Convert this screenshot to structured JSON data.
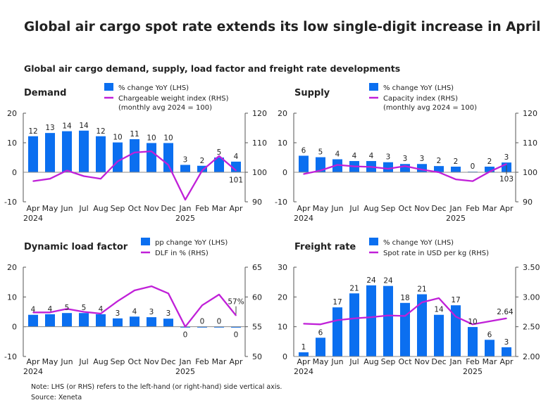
{
  "title": "Global air cargo spot rate extends its low single-digit increase in April",
  "subtitle": "Global air cargo demand, supply, load factor and freight rate developments",
  "note": "Note: LHS (or RHS) refers to the left-hand (or right-hand) side vertical axis.",
  "source": "Source: Xeneta",
  "colors": {
    "bar": "#0b6ff0",
    "line": "#c020d8",
    "axis": "#555555"
  },
  "chart_data": [
    {
      "type": "bar+line",
      "title": "Demand",
      "categories": [
        "Apr",
        "May",
        "Jun",
        "Jul",
        "Aug",
        "Sep",
        "Oct",
        "Nov",
        "Dec",
        "Jan",
        "Feb",
        "Mar",
        "Apr"
      ],
      "year_labels": [
        {
          "index": 0,
          "label": "2024"
        },
        {
          "index": 9,
          "label": "2025"
        }
      ],
      "ylim_left": [
        -10,
        20
      ],
      "yticks_left": [
        "20",
        "10",
        "0",
        "-10"
      ],
      "ylim_right": [
        90,
        120
      ],
      "yticks_right": [
        "120",
        "110",
        "100",
        "90"
      ],
      "bar_series": {
        "name": "% change YoY (LHS)",
        "values": [
          12.2,
          13.3,
          13.9,
          14.1,
          12.2,
          10.1,
          11.2,
          9.9,
          9.9,
          2.5,
          2.2,
          5.0,
          3.6
        ],
        "labels": [
          "12",
          "13",
          "14",
          "14",
          "12",
          "10",
          "11",
          "10",
          "10",
          "3",
          "2",
          "5",
          "4"
        ]
      },
      "line_series": {
        "name": "Chargeable weight index (RHS)",
        "name2": "(monthly avg 2024 = 100)",
        "values": [
          97.0,
          97.8,
          100.6,
          98.7,
          97.8,
          103.7,
          106.7,
          107.1,
          102.5,
          90.7,
          100.6,
          105.5,
          100.6
        ],
        "end_label": "101"
      }
    },
    {
      "type": "bar+line",
      "title": "Supply",
      "categories": [
        "Apr",
        "May",
        "Jun",
        "Jul",
        "Aug",
        "Sep",
        "Oct",
        "Nov",
        "Dec",
        "Jan",
        "Feb",
        "Mar",
        "Apr"
      ],
      "year_labels": [
        {
          "index": 0,
          "label": "2024"
        },
        {
          "index": 9,
          "label": "2025"
        }
      ],
      "ylim_left": [
        -10,
        20
      ],
      "yticks_left": [
        "20",
        "10",
        "0",
        "-10"
      ],
      "ylim_right": [
        90,
        120
      ],
      "yticks_right": [
        "120",
        "110",
        "100",
        "90"
      ],
      "bar_series": {
        "name": "% change YoY (LHS)",
        "values": [
          5.6,
          5.1,
          4.4,
          3.8,
          3.8,
          3.4,
          2.8,
          2.8,
          2.1,
          1.9,
          0.2,
          1.9,
          3.3
        ],
        "labels": [
          "6",
          "5",
          "4",
          "4",
          "4",
          "3",
          "3",
          "3",
          "2",
          "2",
          "0",
          "2",
          "3"
        ]
      },
      "line_series": {
        "name": "Capacity index (RHS)",
        "name2": "(monthly avg 2024 = 100)",
        "values": [
          99.4,
          100.6,
          102.5,
          102.0,
          101.8,
          101.2,
          102.1,
          100.9,
          100.0,
          97.6,
          97.0,
          100.2,
          102.8
        ],
        "end_label": "103"
      }
    },
    {
      "type": "bar+line",
      "title": "Dynamic load factor",
      "categories": [
        "Apr",
        "May",
        "Jun",
        "Jul",
        "Aug",
        "Sep",
        "Oct",
        "Nov",
        "Dec",
        "Jan",
        "Feb",
        "Mar",
        "Apr"
      ],
      "year_labels": [
        {
          "index": 0,
          "label": "2024"
        },
        {
          "index": 9,
          "label": "2025"
        }
      ],
      "ylim_left": [
        -10,
        20
      ],
      "yticks_left": [
        "20",
        "10",
        "0",
        "-10"
      ],
      "ylim_right": [
        50,
        65
      ],
      "yticks_right": [
        "65",
        "60",
        "55",
        "50"
      ],
      "bar_series": {
        "name": "pp change YoY (LHS)",
        "values": [
          4.0,
          4.2,
          4.6,
          4.6,
          4.2,
          2.8,
          3.4,
          3.2,
          2.7,
          -0.2,
          0.0,
          0.0,
          -0.3
        ],
        "labels": [
          "4",
          "4",
          "5",
          "5",
          "4",
          "3",
          "4",
          "3",
          "3",
          "0",
          "0",
          "0",
          "0"
        ]
      },
      "line_series": {
        "name": "DLF in % (RHS)",
        "values": [
          57.4,
          57.4,
          58.0,
          57.5,
          57.2,
          59.3,
          61.1,
          61.8,
          60.6,
          55.0,
          58.6,
          60.4,
          56.9
        ],
        "end_label": "57%"
      }
    },
    {
      "type": "bar+line",
      "title": "Freight rate",
      "categories": [
        "Apr",
        "May",
        "Jun",
        "Jul",
        "Aug",
        "Sep",
        "Oct",
        "Nov",
        "Dec",
        "Jan",
        "Feb",
        "Mar",
        "Apr"
      ],
      "year_labels": [
        {
          "index": 0,
          "label": "2024"
        },
        {
          "index": 10,
          "label": "2025"
        }
      ],
      "ylim_left": [
        0,
        30
      ],
      "yticks_left": [
        "30",
        "20",
        "10",
        "0"
      ],
      "ylim_right": [
        2.0,
        3.5
      ],
      "yticks_right": [
        "3.50",
        "3.00",
        "2.50",
        "2.00"
      ],
      "bar_series": {
        "name": "% change YoY (LHS)",
        "values": [
          1.4,
          6.3,
          16.5,
          21.2,
          23.9,
          23.7,
          18.0,
          20.9,
          14.0,
          17.2,
          9.9,
          5.6,
          3.1
        ],
        "labels": [
          "1",
          "6",
          "17",
          "21",
          "24",
          "24",
          "18",
          "21",
          "14",
          "17",
          "10",
          "6",
          "3"
        ]
      },
      "line_series": {
        "name": "Spot rate in USD per kg (RHS)",
        "values": [
          2.55,
          2.54,
          2.61,
          2.64,
          2.66,
          2.69,
          2.68,
          2.91,
          2.98,
          2.67,
          2.54,
          2.59,
          2.64
        ],
        "end_label": "2.64"
      }
    }
  ]
}
